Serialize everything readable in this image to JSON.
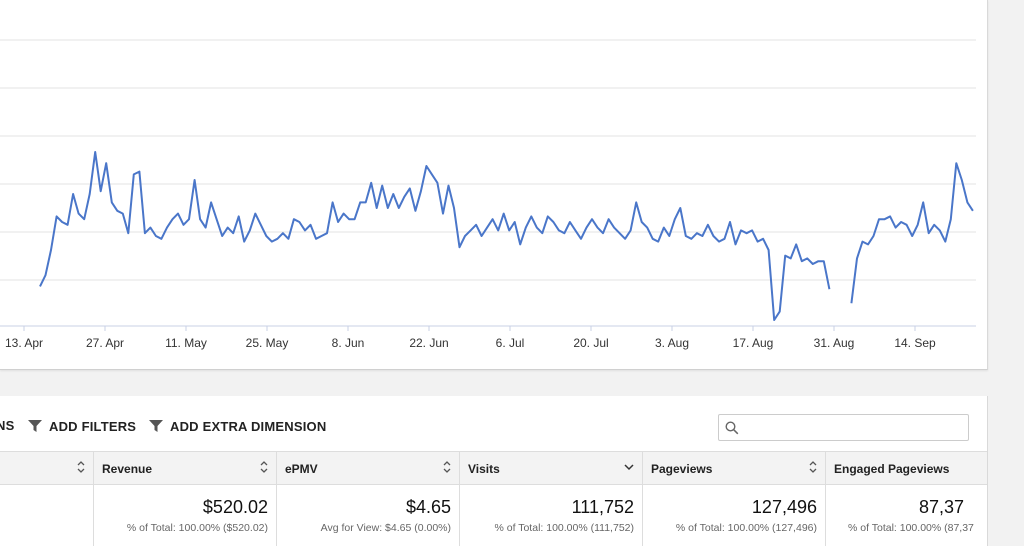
{
  "chart_data": {
    "type": "line",
    "x_tick_labels": [
      "13. Apr",
      "27. Apr",
      "11. May",
      "25. May",
      "8. Jun",
      "22. Jun",
      "6. Jul",
      "20. Jul",
      "3. Aug",
      "17. Aug",
      "31. Aug",
      "14. Sep"
    ],
    "series": [
      {
        "color": "#4a76c9",
        "values": [
          0.12,
          0.16,
          0.25,
          0.37,
          0.35,
          0.34,
          0.45,
          0.38,
          0.36,
          0.45,
          0.6,
          0.46,
          0.56,
          0.42,
          0.39,
          0.38,
          0.31,
          0.52,
          0.53,
          0.31,
          0.33,
          0.3,
          0.29,
          0.33,
          0.36,
          0.38,
          0.34,
          0.36,
          0.5,
          0.36,
          0.33,
          0.42,
          0.36,
          0.3,
          0.33,
          0.31,
          0.37,
          0.28,
          0.32,
          0.38,
          0.34,
          0.3,
          0.28,
          0.29,
          0.31,
          0.29,
          0.36,
          0.35,
          0.32,
          0.34,
          0.29,
          0.3,
          0.31,
          0.42,
          0.35,
          0.38,
          0.36,
          0.36,
          0.42,
          0.42,
          0.49,
          0.4,
          0.48,
          0.4,
          0.45,
          0.4,
          0.44,
          0.47,
          0.39,
          0.46,
          0.55,
          0.52,
          0.49,
          0.38,
          0.48,
          0.4,
          0.26,
          0.3,
          0.32,
          0.34,
          0.3,
          0.33,
          0.36,
          0.32,
          0.38,
          0.32,
          0.35,
          0.27,
          0.33,
          0.37,
          0.33,
          0.31,
          0.37,
          0.35,
          0.32,
          0.31,
          0.35,
          0.32,
          0.29,
          0.33,
          0.36,
          0.33,
          0.31,
          0.36,
          0.33,
          0.31,
          0.29,
          0.32,
          0.42,
          0.35,
          0.33,
          0.29,
          0.28,
          0.33,
          0.3,
          0.36,
          0.4,
          0.3,
          0.29,
          0.31,
          0.3,
          0.34,
          0.3,
          0.28,
          0.29,
          0.35,
          0.27,
          0.32,
          0.31,
          0.32,
          0.28,
          0.29,
          0.25,
          0.0,
          0.03,
          0.23,
          0.22,
          0.27,
          0.21,
          0.22,
          0.2,
          0.21,
          0.21,
          0.11,
          null,
          null,
          null,
          0.06,
          0.22,
          0.28,
          0.27,
          0.3,
          0.36,
          0.36,
          0.37,
          0.33,
          0.35,
          0.34,
          0.3,
          0.34,
          0.42,
          0.31,
          0.34,
          0.32,
          0.28,
          0.36,
          0.56,
          0.5,
          0.42,
          0.39
        ]
      }
    ]
  },
  "toolbar": {
    "partial_label": "NS",
    "add_filters": "ADD FILTERS",
    "add_extra_dimension": "ADD EXTRA DIMENSION",
    "search_placeholder": ""
  },
  "table": {
    "columns": [
      {
        "label": "",
        "sort": "updown"
      },
      {
        "label": "Revenue",
        "sort": "updown"
      },
      {
        "label": "ePMV",
        "sort": "updown"
      },
      {
        "label": "Visits",
        "sort": "down"
      },
      {
        "label": "Pageviews",
        "sort": "updown"
      },
      {
        "label": "Engaged Pageviews",
        "sort": "none"
      }
    ],
    "totals": [
      {
        "value": "",
        "sub": ""
      },
      {
        "value": "$520.02",
        "sub": "% of Total: 100.00% ($520.02)"
      },
      {
        "value": "$4.65",
        "sub": "Avg for View: $4.65 (0.00%)"
      },
      {
        "value": "111,752",
        "sub": "% of Total: 100.00% (111,752)"
      },
      {
        "value": "127,496",
        "sub": "% of Total: 100.00% (127,496)"
      },
      {
        "value": "87,37",
        "sub": "% of Total: 100.00% (87,37"
      }
    ]
  }
}
